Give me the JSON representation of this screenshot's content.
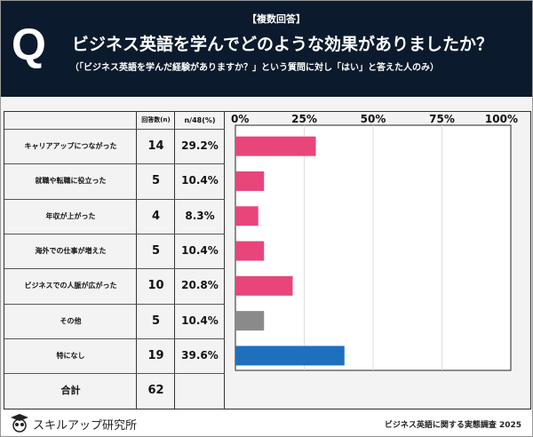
{
  "header": {
    "q_label": "Q",
    "tag": "【複数回答】",
    "title": "ビジネス英語を学んでどのような効果がありましたか？",
    "subtitle": "（「ビジネス英語を学んだ経験がありますか？」という質問に対し「はい」と答えた人のみ）"
  },
  "table": {
    "col_count": "回答数(n)",
    "col_pct": "n/48(%)",
    "total_label": "合計",
    "total_value": "62"
  },
  "chart_data": {
    "type": "bar",
    "orientation": "horizontal",
    "categories": [
      "キャリアアップにつながった",
      "就職や転職に役立った",
      "年収が上がった",
      "海外での仕事が増えた",
      "ビジネスでの人脈が広がった",
      "その他",
      "特になし"
    ],
    "counts": [
      14,
      5,
      4,
      5,
      10,
      5,
      19
    ],
    "values": [
      29.2,
      10.4,
      8.3,
      10.4,
      20.8,
      10.4,
      39.6
    ],
    "value_labels": [
      "29.2%",
      "10.4%",
      "8.3%",
      "10.4%",
      "20.8%",
      "10.4%",
      "39.6%"
    ],
    "xlim": [
      0,
      100
    ],
    "ticks": [
      "0%",
      "25%",
      "50%",
      "75%",
      "100%"
    ],
    "grid": true,
    "colors": [
      "#e8457a",
      "#e8457a",
      "#e8457a",
      "#e8457a",
      "#e8457a",
      "#8a8a8a",
      "#1f6fbf"
    ]
  },
  "footer": {
    "brand": "スキルアップ研究所",
    "survey": "ビジネス英語に関する実態調査 2025"
  }
}
